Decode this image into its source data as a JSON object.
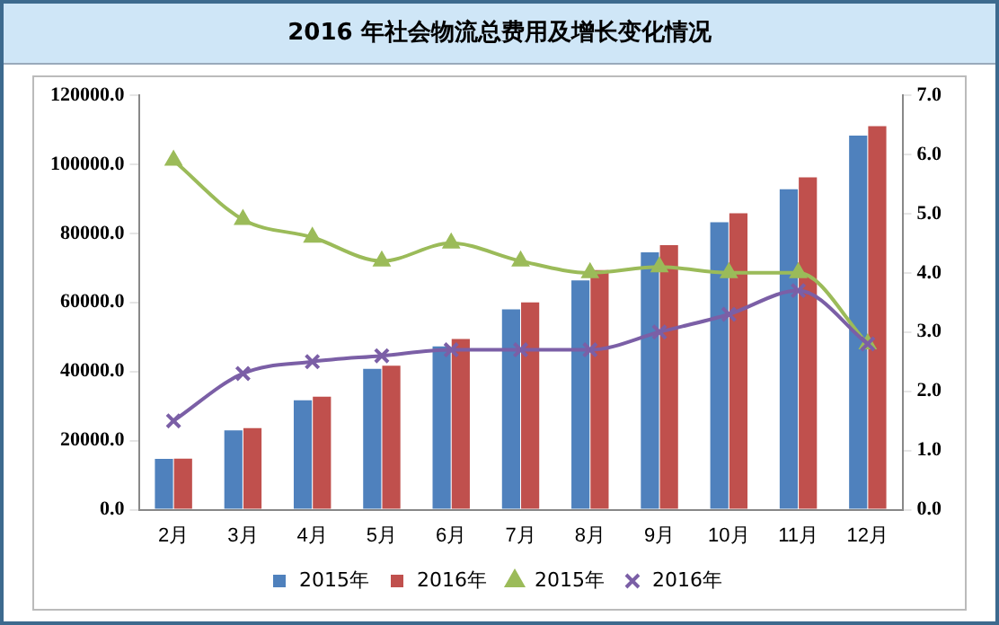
{
  "chart_data": {
    "type": "bar",
    "title": "2016 年社会物流总费用及增长变化情况",
    "categories": [
      "2月",
      "3月",
      "4月",
      "5月",
      "6月",
      "7月",
      "8月",
      "9月",
      "10月",
      "11月",
      "12月"
    ],
    "series": [
      {
        "name": "2015年",
        "color": "#4f81bd",
        "values": [
          14700,
          23000,
          31700,
          40800,
          47300,
          58000,
          66400,
          74500,
          83200,
          92800,
          108300
        ]
      },
      {
        "name": "2016年",
        "color": "#c0504d",
        "values": [
          14800,
          23600,
          32700,
          41700,
          49400,
          60000,
          69400,
          76600,
          85800,
          96200,
          111000
        ]
      },
      {
        "name": "2015年",
        "type": "line",
        "axis": "y2",
        "marker": "triangle",
        "color": "#9bbb59",
        "values": [
          5.9,
          4.9,
          4.6,
          4.2,
          4.5,
          4.2,
          4.0,
          4.1,
          4.0,
          4.0,
          2.8
        ]
      },
      {
        "name": "2016年",
        "type": "line",
        "axis": "y2",
        "marker": "cross",
        "color": "#7b5fa6",
        "values": [
          1.5,
          2.3,
          2.5,
          2.6,
          2.7,
          2.7,
          2.7,
          3.0,
          3.3,
          3.7,
          2.8
        ]
      }
    ],
    "ylim": [
      0,
      120000
    ],
    "yticks": [
      {
        "value": 0,
        "label": "0.0"
      },
      {
        "value": 20000,
        "label": "20000.0"
      },
      {
        "value": 40000,
        "label": "40000.0"
      },
      {
        "value": 60000,
        "label": "60000.0"
      },
      {
        "value": 80000,
        "label": "80000.0"
      },
      {
        "value": 100000,
        "label": "100000.0"
      },
      {
        "value": 120000,
        "label": "120000.0"
      }
    ],
    "y2lim": [
      0,
      7
    ],
    "y2ticks": [
      {
        "value": 0,
        "label": "0.0"
      },
      {
        "value": 1,
        "label": "1.0"
      },
      {
        "value": 2,
        "label": "2.0"
      },
      {
        "value": 3,
        "label": "3.0"
      },
      {
        "value": 4,
        "label": "4.0"
      },
      {
        "value": 5,
        "label": "5.0"
      },
      {
        "value": 6,
        "label": "6.0"
      },
      {
        "value": 7,
        "label": "7.0"
      }
    ],
    "grid": false,
    "legend": "bottom"
  }
}
